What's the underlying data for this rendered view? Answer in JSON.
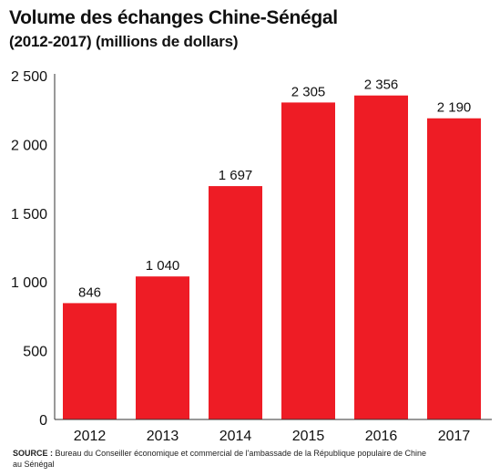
{
  "chart_data": {
    "type": "bar",
    "title": "Volume des échanges Chine-Sénégal",
    "subtitle": "(2012-2017) (millions de dollars)",
    "categories": [
      "2012",
      "2013",
      "2014",
      "2015",
      "2016",
      "2017"
    ],
    "values": [
      846,
      1040,
      1697,
      2305,
      2356,
      2190
    ],
    "value_labels": [
      "846",
      "1 040",
      "1 697",
      "2 305",
      "2 356",
      "2 190"
    ],
    "ylim": [
      0,
      2500
    ],
    "yticks": [
      0,
      500,
      1000,
      1500,
      2000,
      2500
    ],
    "ytick_labels": [
      "0",
      "500",
      "1 000",
      "1 500",
      "2 000",
      "2 500"
    ],
    "xlabel": "",
    "ylabel": "",
    "grid": false,
    "bar_color": "#ee1c25",
    "axis_color": "#333333"
  },
  "source": {
    "label": "SOURCE :",
    "text": "Bureau du Conseiller économique et commercial de l'ambassade de la République populaire de Chine au Sénégal"
  }
}
